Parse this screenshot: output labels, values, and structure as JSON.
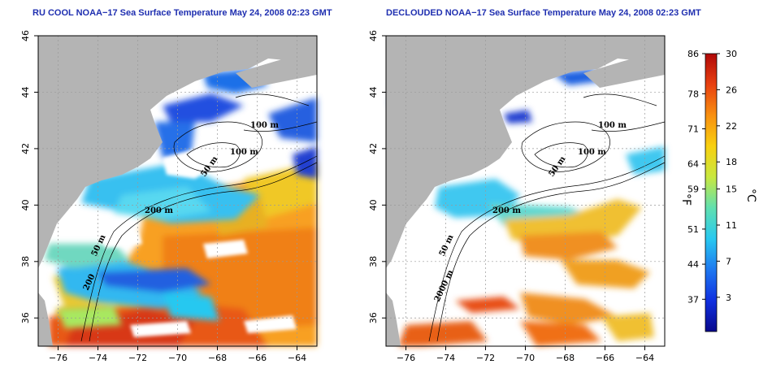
{
  "titles": {
    "left": "RU COOL NOAA−17 Sea Surface Temperature May 24, 2008 02:23 GMT",
    "right": "DECLOUDED NOAA−17 Sea Surface Temperature May 24, 2008 02:23 GMT"
  },
  "lat_ticks": [
    "36",
    "38",
    "40",
    "42",
    "44",
    "46"
  ],
  "lon_ticks": [
    "−76",
    "−74",
    "−72",
    "−70",
    "−68",
    "−66",
    "−64"
  ],
  "contour_labels": {
    "left": [
      "100 m",
      "100 m",
      "50 m",
      "200 m",
      "50 m",
      "200"
    ],
    "right": [
      "100 m",
      "100 m",
      "50 m",
      "200 m",
      "50 m",
      "2000 m"
    ]
  },
  "colorbar": {
    "fahrenheit_ticks": [
      "86",
      "78",
      "71",
      "64",
      "59",
      "51",
      "44",
      "37"
    ],
    "celsius_ticks": [
      "30",
      "26",
      "22",
      "18",
      "15",
      "11",
      "7",
      "3"
    ],
    "fahrenheit_unit": "°F",
    "celsius_unit": "°C",
    "colors": [
      "#08088c",
      "#1030e0",
      "#1e78f0",
      "#28c8f0",
      "#60e0b0",
      "#c8e840",
      "#f8d010",
      "#f89010",
      "#e84010",
      "#b00808"
    ]
  },
  "colors": {
    "land": "#b4b4b4",
    "water_no_data": "#ffffff",
    "title": "#1f2fb0"
  }
}
